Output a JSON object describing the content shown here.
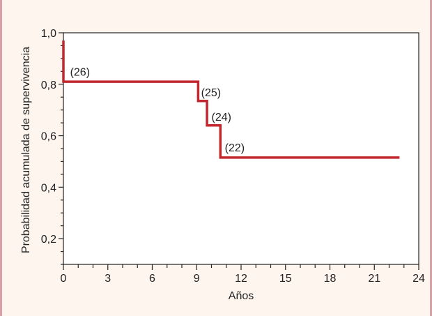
{
  "chart_data": {
    "type": "line",
    "subtype": "kaplan-meier step curve",
    "xlabel": "Años",
    "ylabel": "Probabilidad acumulada de supervivencia",
    "xlim": [
      0,
      24
    ],
    "ylim": [
      0.1,
      1.0
    ],
    "x_major_ticks": [
      0,
      3,
      6,
      9,
      12,
      15,
      18,
      21,
      24
    ],
    "x_tick_labels": [
      "0",
      "3",
      "6",
      "9",
      "12",
      "15",
      "18",
      "21",
      "24"
    ],
    "y_major_ticks": [
      1.0,
      0.8,
      0.6,
      0.4,
      0.2
    ],
    "y_tick_labels": [
      "1,0",
      "0,8",
      "0,6",
      "0,4",
      "0,2"
    ],
    "grid": false,
    "line_color": "#c1272d",
    "series": [
      {
        "steps": [
          {
            "x": 0,
            "y": 0.97
          },
          {
            "x": 0,
            "y": 0.81
          },
          {
            "x": 9.1,
            "y": 0.81
          },
          {
            "x": 9.1,
            "y": 0.735
          },
          {
            "x": 9.7,
            "y": 0.735
          },
          {
            "x": 9.7,
            "y": 0.64
          },
          {
            "x": 10.6,
            "y": 0.64
          },
          {
            "x": 10.6,
            "y": 0.515
          },
          {
            "x": 22.7,
            "y": 0.515
          }
        ]
      }
    ],
    "annotations": [
      {
        "text": "(26)",
        "x": 0.45,
        "y": 0.85
      },
      {
        "text": "(25)",
        "x": 9.3,
        "y": 0.77
      },
      {
        "text": "(24)",
        "x": 10.0,
        "y": 0.675
      },
      {
        "text": "(22)",
        "x": 10.9,
        "y": 0.555
      }
    ]
  }
}
